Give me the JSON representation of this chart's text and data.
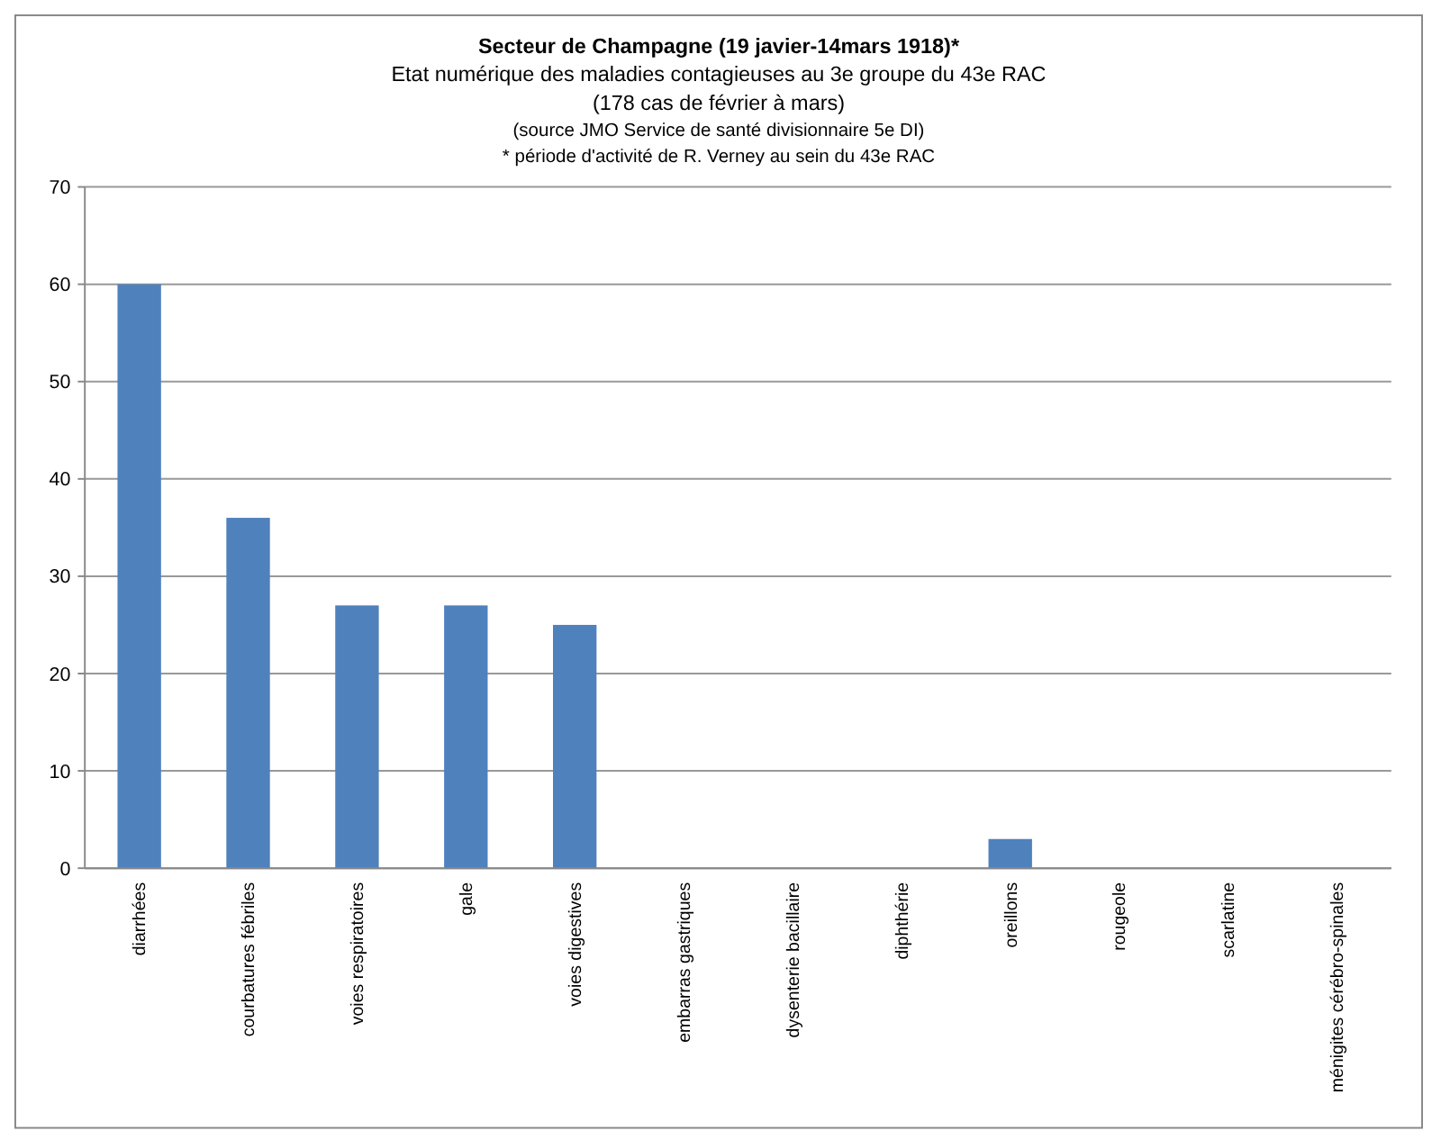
{
  "chart_data": {
    "type": "bar",
    "title": "Secteur de Champagne (19 javier-14mars 1918)*",
    "subtitle": "Etat numérique des maladies  contagieuses au 3e groupe du 43e RAC",
    "annotations": [
      "(178 cas de février à mars)",
      "(source JMO  Service de santé divisionnaire 5e DI)",
      "* période d'activité de R. Verney au sein du 43e RAC"
    ],
    "categories": [
      "diarrhées",
      "courbatures fébriles",
      "voies respiratoires",
      "gale",
      "voies digestives",
      "embarras gastriques",
      "dysenterie bacillaire",
      "diphthérie",
      "oreillons",
      "rougeole",
      "scarlatine",
      "ménigites cérébro-spinales"
    ],
    "values": [
      60,
      36,
      27,
      27,
      25,
      0,
      0,
      0,
      3,
      0,
      0,
      0
    ],
    "color": "#4f81bd",
    "ylim": [
      0,
      70
    ],
    "yticks": [
      0,
      10,
      20,
      30,
      40,
      50,
      60,
      70
    ],
    "grid": "y"
  }
}
